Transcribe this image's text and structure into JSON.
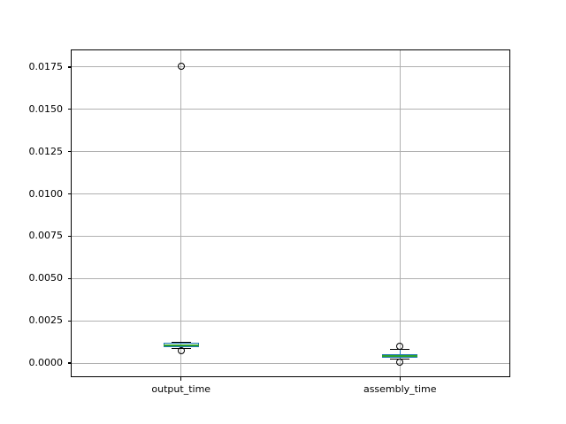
{
  "chart_data": {
    "type": "boxplot",
    "title": "",
    "xlabel": "",
    "ylabel": "",
    "grid": true,
    "legend": false,
    "categories": [
      "output_time",
      "assembly_time"
    ],
    "ylim": [
      -0.000782,
      0.018491
    ],
    "yticks": [
      {
        "value": 0.0,
        "label": "0.0000"
      },
      {
        "value": 0.0025,
        "label": "0.0025"
      },
      {
        "value": 0.005,
        "label": "0.0050"
      },
      {
        "value": 0.0075,
        "label": "0.0075"
      },
      {
        "value": 0.01,
        "label": "0.0100"
      },
      {
        "value": 0.0125,
        "label": "0.0125"
      },
      {
        "value": 0.015,
        "label": "0.0150"
      },
      {
        "value": 0.0175,
        "label": "0.0175"
      }
    ],
    "series": [
      {
        "name": "output_time",
        "whisker_low": 0.00088,
        "q1": 0.00095,
        "median": 0.00106,
        "q3": 0.00118,
        "whisker_high": 0.00122,
        "outliers": [
          0.01755,
          0.00073
        ]
      },
      {
        "name": "assembly_time",
        "whisker_low": 0.00022,
        "q1": 0.0003,
        "median": 0.0004,
        "q3": 0.00051,
        "whisker_high": 0.00082,
        "outliers": [
          0.001,
          5e-05
        ]
      }
    ],
    "colors": {
      "box": "#1f77b4",
      "median": "#2ca02c",
      "whisker": "#1f77b4",
      "cap": "#000000",
      "flier": "#000000",
      "grid": "#b0b0b0",
      "spine": "#000000",
      "text": "#000000",
      "background": "#ffffff"
    }
  }
}
